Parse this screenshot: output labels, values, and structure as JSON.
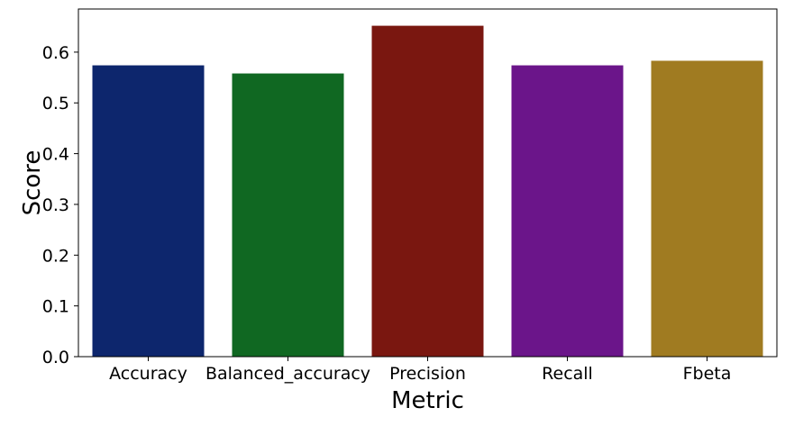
{
  "chart_data": {
    "type": "bar",
    "title": "",
    "xlabel": "Metric",
    "ylabel": "Score",
    "categories": [
      "Accuracy",
      "Balanced_accuracy",
      "Precision",
      "Recall",
      "Fbeta"
    ],
    "values": [
      0.574,
      0.558,
      0.652,
      0.574,
      0.583
    ],
    "colors": [
      "#0d266d",
      "#106822",
      "#7a1710",
      "#6b158a",
      "#a07b21"
    ],
    "ylim": [
      0,
      0.685
    ],
    "yticks": [
      "0.0",
      "0.1",
      "0.2",
      "0.3",
      "0.4",
      "0.5",
      "0.6"
    ],
    "ytick_values": [
      0,
      0.1,
      0.2,
      0.3,
      0.4,
      0.5,
      0.6
    ],
    "grid": false,
    "legend": "none"
  }
}
